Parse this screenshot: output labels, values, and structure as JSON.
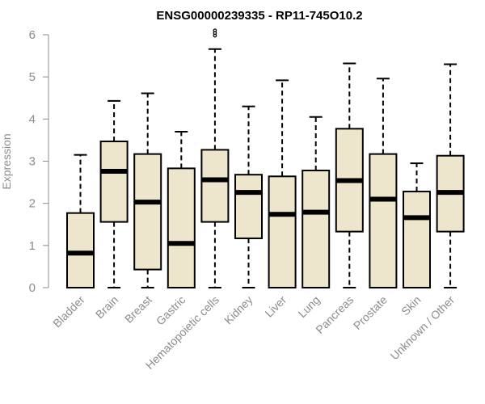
{
  "chart_data": {
    "type": "boxplot",
    "title": "ENSG00000239335 - RP11-745O10.2",
    "xlabel": "",
    "ylabel": "Expression",
    "ylim": [
      0,
      6
    ],
    "yticks": [
      "0",
      "1",
      "2",
      "3",
      "4",
      "5",
      "6"
    ],
    "categories": [
      "Bladder",
      "Brain",
      "Breast",
      "Gastric",
      "Hematopoietic cells",
      "Kidney",
      "Liver",
      "Lung",
      "Pancreas",
      "Prostate",
      "Skin",
      "Unknown / Other"
    ],
    "boxes": [
      {
        "name": "Bladder",
        "min": 0,
        "q1": 0,
        "median": 0.82,
        "q3": 1.77,
        "max": 3.15,
        "outliers": []
      },
      {
        "name": "Brain",
        "min": 0,
        "q1": 1.56,
        "median": 2.76,
        "q3": 3.47,
        "max": 4.43,
        "outliers": []
      },
      {
        "name": "Breast",
        "min": 0,
        "q1": 0.43,
        "median": 2.03,
        "q3": 3.17,
        "max": 4.61,
        "outliers": []
      },
      {
        "name": "Gastric",
        "min": 0,
        "q1": 0,
        "median": 1.05,
        "q3": 2.83,
        "max": 3.7,
        "outliers": []
      },
      {
        "name": "Hematopoietic cells",
        "min": 0,
        "q1": 1.56,
        "median": 2.56,
        "q3": 3.27,
        "max": 5.66,
        "outliers": [
          5.98,
          6.04,
          6.1
        ]
      },
      {
        "name": "Kidney",
        "min": 0,
        "q1": 1.17,
        "median": 2.26,
        "q3": 2.68,
        "max": 4.3,
        "outliers": []
      },
      {
        "name": "Liver",
        "min": 0,
        "q1": 0,
        "median": 1.74,
        "q3": 2.64,
        "max": 4.92,
        "outliers": []
      },
      {
        "name": "Lung",
        "min": 0,
        "q1": 0,
        "median": 1.79,
        "q3": 2.78,
        "max": 4.05,
        "outliers": []
      },
      {
        "name": "Pancreas",
        "min": 0,
        "q1": 1.33,
        "median": 2.54,
        "q3": 3.77,
        "max": 5.32,
        "outliers": []
      },
      {
        "name": "Prostate",
        "min": 0,
        "q1": 0,
        "median": 2.1,
        "q3": 3.17,
        "max": 4.96,
        "outliers": []
      },
      {
        "name": "Skin",
        "min": 0,
        "q1": 0,
        "median": 1.66,
        "q3": 2.28,
        "max": 2.95,
        "outliers": []
      },
      {
        "name": "Unknown / Other",
        "min": 0,
        "q1": 1.33,
        "median": 2.26,
        "q3": 3.13,
        "max": 5.3,
        "outliers": []
      }
    ],
    "colors": {
      "box_fill": "#ede6cc",
      "stroke": "#000000",
      "axis": "#8c8c8c"
    }
  }
}
